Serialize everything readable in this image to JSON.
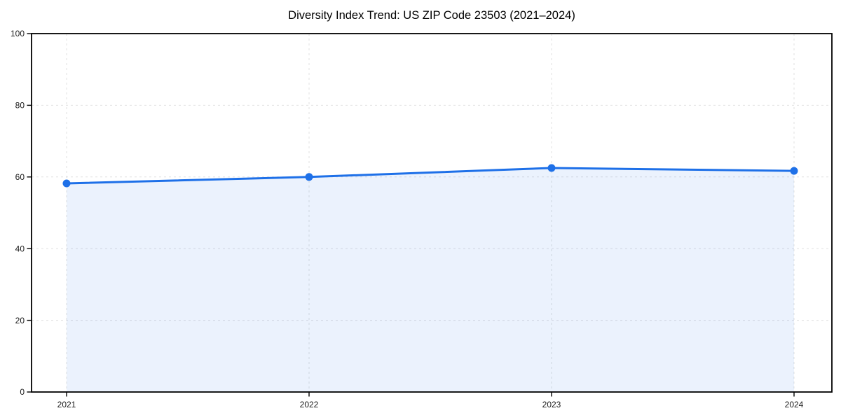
{
  "header": {
    "title": "Diversity Index Trend: US ZIP Code 23503 (2021–2024)"
  },
  "chart_data": {
    "type": "area",
    "title": "Diversity Index Trend: US ZIP Code 23503 (2021–2024)",
    "categories": [
      "2021",
      "2022",
      "2023",
      "2024"
    ],
    "series": [
      {
        "name": "Diversity Index",
        "values": [
          58.2,
          60.0,
          62.5,
          61.7
        ]
      }
    ],
    "xlabel": "",
    "ylabel": "",
    "ylim": [
      0,
      100
    ],
    "yticks": [
      0,
      20,
      40,
      60,
      80,
      100
    ],
    "grid": "dashed",
    "legend": "none",
    "line_color": "#1e70e8",
    "marker_color": "#1e70e8",
    "area_fill_color": "#1e70e8",
    "area_fill_opacity": 0.09,
    "grid_color": "#e0e0e0",
    "axis_color": "#000000",
    "tick_label_color": "#1a1a1a",
    "background_color": "#ffffff"
  }
}
